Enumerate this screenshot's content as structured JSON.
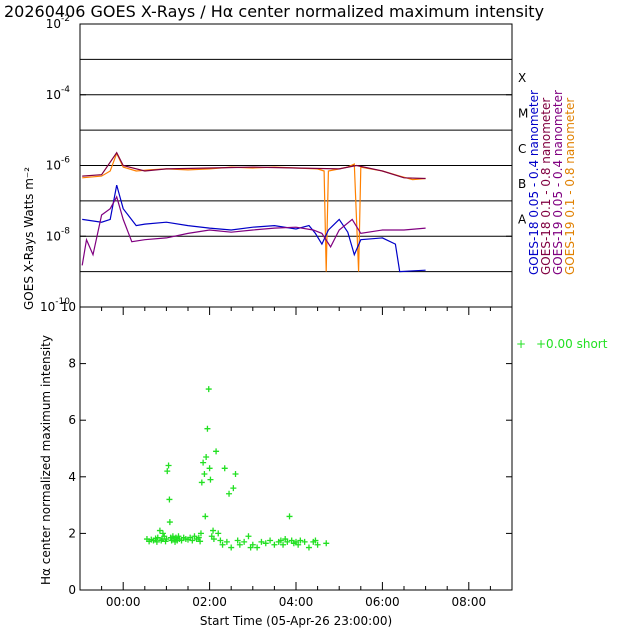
{
  "title": "20260406 GOES X-Rays / Hα center normalized maximum intensity",
  "colors": {
    "goes18_short": "#0000c8",
    "goes18_long": "#800040",
    "goes19_short": "#800080",
    "goes19_long": "#ff8000",
    "goes19_long_core": "#e02000",
    "halpha": "#22e022"
  },
  "top_panel": {
    "ylabel": "GOES X-Rays Watts m⁻²",
    "y_ticks": [
      {
        "base": "10",
        "exp": "-2"
      },
      {
        "base": "10",
        "exp": "-4"
      },
      {
        "base": "10",
        "exp": "-6"
      },
      {
        "base": "10",
        "exp": "-8"
      },
      {
        "base": "10",
        "exp": "-10"
      }
    ],
    "flare_classes": [
      "X",
      "M",
      "C",
      "B",
      "A"
    ],
    "legend": [
      {
        "text": "GOES-18 0.05 - 0.4 nanometer",
        "color": "#0000c8"
      },
      {
        "text": "GOES-18 0.1 - 0.8 nanometer",
        "color": "#800040"
      },
      {
        "text": "GOES-19 0.05 - 0.4 nanometer",
        "color": "#800080"
      },
      {
        "text": "GOES-19 0.1 - 0.8 nanometer",
        "color": "#e08000"
      }
    ]
  },
  "bottom_panel": {
    "ylabel": "Hα center normalized maximum intensity",
    "xlabel": "Start Time (05-Apr-26 23:00:00)",
    "y_ticks": [
      "0",
      "2",
      "4",
      "6",
      "8",
      "10"
    ],
    "x_ticks": [
      "00:00",
      "02:00",
      "04:00",
      "06:00",
      "08:00"
    ],
    "legend": {
      "symbol": "+",
      "text": "+0.00 short"
    }
  },
  "chart_data": [
    {
      "type": "line",
      "title": "20260406 GOES X-Rays",
      "ylabel": "GOES X-Rays Watts m^-2",
      "yscale": "log",
      "ylim": [
        1e-10,
        0.01
      ],
      "xlim": [
        -1.0,
        9.0
      ],
      "x_unit": "hours from 00:00 (05-Apr-26 23:00:00 start)",
      "series": [
        {
          "name": "GOES-19 0.1 - 0.8 nanometer",
          "points": [
            [
              -0.95,
              4.5e-07
            ],
            [
              -0.5,
              5e-07
            ],
            [
              -0.3,
              7e-07
            ],
            [
              -0.15,
              2.2e-06
            ],
            [
              0.0,
              9e-07
            ],
            [
              0.3,
              7e-07
            ],
            [
              0.6,
              7.5e-07
            ],
            [
              1.0,
              8e-07
            ],
            [
              1.5,
              7.5e-07
            ],
            [
              2.0,
              8e-07
            ],
            [
              2.5,
              9e-07
            ],
            [
              3.0,
              8.5e-07
            ],
            [
              3.5,
              9e-07
            ],
            [
              4.0,
              8.5e-07
            ],
            [
              4.5,
              8e-07
            ],
            [
              4.65,
              7e-07
            ],
            [
              4.7,
              1e-09
            ],
            [
              4.75,
              7e-07
            ],
            [
              5.0,
              8e-07
            ],
            [
              5.2,
              9e-07
            ],
            [
              5.35,
              1.1e-06
            ],
            [
              5.45,
              1e-09
            ],
            [
              5.5,
              9e-07
            ],
            [
              6.0,
              7e-07
            ],
            [
              6.4,
              5e-07
            ],
            [
              6.7,
              4e-07
            ],
            [
              7.0,
              4.3e-07
            ]
          ]
        },
        {
          "name": "GOES-18 0.1 - 0.8 nanometer",
          "points": [
            [
              -0.95,
              5e-07
            ],
            [
              -0.5,
              5.5e-07
            ],
            [
              -0.15,
              2.3e-06
            ],
            [
              0.0,
              1e-06
            ],
            [
              0.5,
              7e-07
            ],
            [
              1.0,
              8e-07
            ],
            [
              2.0,
              8.5e-07
            ],
            [
              3.0,
              9e-07
            ],
            [
              4.0,
              8.5e-07
            ],
            [
              5.0,
              8e-07
            ],
            [
              5.4,
              1e-06
            ],
            [
              6.0,
              7e-07
            ],
            [
              6.5,
              4.5e-07
            ],
            [
              7.0,
              4.3e-07
            ]
          ]
        },
        {
          "name": "GOES-18 0.05 - 0.4 nanometer",
          "points": [
            [
              -0.95,
              3e-08
            ],
            [
              -0.5,
              2.5e-08
            ],
            [
              -0.3,
              3e-08
            ],
            [
              -0.15,
              2.8e-07
            ],
            [
              0.0,
              6e-08
            ],
            [
              0.3,
              2e-08
            ],
            [
              0.5,
              2.2e-08
            ],
            [
              1.0,
              2.5e-08
            ],
            [
              1.5,
              2e-08
            ],
            [
              2.0,
              1.7e-08
            ],
            [
              2.5,
              1.5e-08
            ],
            [
              3.0,
              1.8e-08
            ],
            [
              3.5,
              2e-08
            ],
            [
              4.0,
              1.6e-08
            ],
            [
              4.3,
              2e-08
            ],
            [
              4.45,
              1.2e-08
            ],
            [
              4.6,
              6e-09
            ],
            [
              4.75,
              1.5e-08
            ],
            [
              5.0,
              3e-08
            ],
            [
              5.2,
              1.3e-08
            ],
            [
              5.35,
              3e-09
            ],
            [
              5.5,
              8e-09
            ],
            [
              6.0,
              9e-09
            ],
            [
              6.3,
              6e-09
            ],
            [
              6.4,
              1e-09
            ],
            [
              7.0,
              1.1e-09
            ]
          ]
        },
        {
          "name": "GOES-19 0.05 - 0.4 nanometer",
          "points": [
            [
              -0.95,
              1.5e-09
            ],
            [
              -0.85,
              8e-09
            ],
            [
              -0.7,
              3e-09
            ],
            [
              -0.5,
              4e-08
            ],
            [
              -0.3,
              6e-08
            ],
            [
              -0.15,
              1.3e-07
            ],
            [
              0.0,
              3e-08
            ],
            [
              0.2,
              7e-09
            ],
            [
              0.5,
              8e-09
            ],
            [
              1.0,
              9e-09
            ],
            [
              1.5,
              1.2e-08
            ],
            [
              2.0,
              1.5e-08
            ],
            [
              2.5,
              1.3e-08
            ],
            [
              3.0,
              1.5e-08
            ],
            [
              3.5,
              1.7e-08
            ],
            [
              4.0,
              1.8e-08
            ],
            [
              4.4,
              1.5e-08
            ],
            [
              4.6,
              1.2e-08
            ],
            [
              4.8,
              5e-09
            ],
            [
              5.0,
              1.5e-08
            ],
            [
              5.3,
              3e-08
            ],
            [
              5.5,
              1.2e-08
            ],
            [
              6.0,
              1.5e-08
            ],
            [
              6.5,
              1.5e-08
            ],
            [
              7.0,
              1.7e-08
            ]
          ]
        }
      ],
      "annotations": [
        "X",
        "M",
        "C",
        "B",
        "A"
      ]
    },
    {
      "type": "scatter",
      "title": "Hα center normalized maximum intensity",
      "xlabel": "Start Time (05-Apr-26 23:00:00)",
      "ylabel": "Hα center normalized maximum intensity",
      "xlim": [
        -1.0,
        9.0
      ],
      "ylim": [
        0,
        10
      ],
      "x_unit": "hours from 00:00",
      "legend": "+0.00 short",
      "x_tick_labels": [
        "00:00",
        "02:00",
        "04:00",
        "06:00",
        "08:00"
      ],
      "points": [
        [
          0.55,
          1.8
        ],
        [
          0.6,
          1.72
        ],
        [
          0.65,
          1.78
        ],
        [
          0.7,
          1.75
        ],
        [
          0.75,
          1.82
        ],
        [
          0.78,
          1.7
        ],
        [
          0.8,
          1.85
        ],
        [
          0.85,
          2.1
        ],
        [
          0.88,
          1.75
        ],
        [
          0.9,
          1.8
        ],
        [
          0.92,
          2.0
        ],
        [
          0.95,
          1.9
        ],
        [
          0.98,
          1.72
        ],
        [
          1.0,
          1.8
        ],
        [
          1.02,
          4.2
        ],
        [
          1.05,
          4.4
        ],
        [
          1.07,
          3.2
        ],
        [
          1.08,
          2.4
        ],
        [
          1.1,
          1.85
        ],
        [
          1.12,
          1.75
        ],
        [
          1.15,
          1.9
        ],
        [
          1.18,
          1.8
        ],
        [
          1.2,
          1.7
        ],
        [
          1.22,
          1.85
        ],
        [
          1.25,
          1.75
        ],
        [
          1.28,
          1.9
        ],
        [
          1.3,
          1.8
        ],
        [
          1.35,
          1.75
        ],
        [
          1.4,
          1.85
        ],
        [
          1.45,
          1.8
        ],
        [
          1.5,
          1.78
        ],
        [
          1.55,
          1.85
        ],
        [
          1.6,
          1.75
        ],
        [
          1.65,
          1.9
        ],
        [
          1.7,
          1.8
        ],
        [
          1.75,
          1.85
        ],
        [
          1.78,
          1.72
        ],
        [
          1.8,
          2.0
        ],
        [
          1.82,
          3.8
        ],
        [
          1.85,
          4.5
        ],
        [
          1.88,
          4.1
        ],
        [
          1.9,
          2.6
        ],
        [
          1.92,
          4.7
        ],
        [
          1.95,
          5.7
        ],
        [
          1.98,
          7.1
        ],
        [
          2.0,
          4.3
        ],
        [
          2.02,
          3.9
        ],
        [
          2.05,
          1.9
        ],
        [
          2.08,
          2.1
        ],
        [
          2.1,
          1.8
        ],
        [
          2.15,
          4.9
        ],
        [
          2.2,
          2.0
        ],
        [
          2.25,
          1.75
        ],
        [
          2.3,
          1.6
        ],
        [
          2.35,
          4.3
        ],
        [
          2.4,
          1.7
        ],
        [
          2.45,
          3.4
        ],
        [
          2.5,
          1.5
        ],
        [
          2.55,
          3.6
        ],
        [
          2.6,
          4.1
        ],
        [
          2.65,
          1.75
        ],
        [
          2.7,
          1.6
        ],
        [
          2.8,
          1.7
        ],
        [
          2.9,
          1.9
        ],
        [
          2.95,
          1.5
        ],
        [
          3.0,
          1.6
        ],
        [
          3.1,
          1.5
        ],
        [
          3.2,
          1.7
        ],
        [
          3.3,
          1.65
        ],
        [
          3.4,
          1.75
        ],
        [
          3.5,
          1.6
        ],
        [
          3.6,
          1.7
        ],
        [
          3.65,
          1.75
        ],
        [
          3.7,
          1.6
        ],
        [
          3.75,
          1.8
        ],
        [
          3.8,
          1.7
        ],
        [
          3.85,
          2.6
        ],
        [
          3.9,
          1.75
        ],
        [
          3.95,
          1.65
        ],
        [
          4.0,
          1.7
        ],
        [
          4.05,
          1.6
        ],
        [
          4.1,
          1.75
        ],
        [
          4.2,
          1.7
        ],
        [
          4.3,
          1.5
        ],
        [
          4.4,
          1.7
        ],
        [
          4.45,
          1.75
        ],
        [
          4.5,
          1.6
        ],
        [
          4.7,
          1.65
        ]
      ]
    }
  ]
}
